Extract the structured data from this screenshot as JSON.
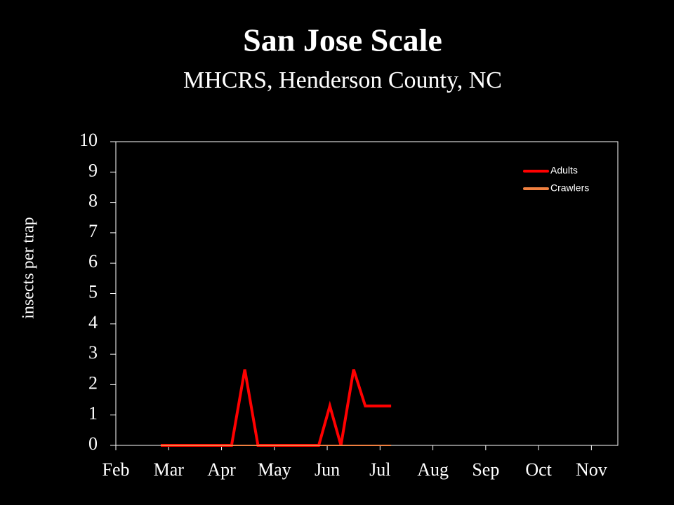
{
  "chart_data": {
    "type": "line",
    "title": "San Jose Scale",
    "subtitle": "MHCRS, Henderson County, NC",
    "y_label": "insects per trap",
    "xlim": [
      0,
      9.5
    ],
    "xticks": [
      {
        "value": 0,
        "label": "Feb"
      },
      {
        "value": 1,
        "label": "Mar"
      },
      {
        "value": 2,
        "label": "Apr"
      },
      {
        "value": 3,
        "label": "May"
      },
      {
        "value": 4,
        "label": "Jun"
      },
      {
        "value": 5,
        "label": "Jul"
      },
      {
        "value": 6,
        "label": "Aug"
      },
      {
        "value": 7,
        "label": "Sep"
      },
      {
        "value": 8,
        "label": "Oct"
      },
      {
        "value": 9,
        "label": "Nov"
      }
    ],
    "ylim": [
      0,
      10
    ],
    "yticks": [
      0,
      1,
      2,
      3,
      4,
      5,
      6,
      7,
      8,
      9,
      10
    ],
    "legend": "upper right",
    "series": [
      {
        "name": "Adults",
        "color": "#ff0000",
        "x": [
          0.85,
          2.19,
          2.44,
          2.69,
          3.84,
          4.05,
          4.26,
          4.5,
          4.72,
          5.21
        ],
        "values": [
          0,
          0,
          2.5,
          0,
          0,
          1.3,
          0,
          2.5,
          1.3,
          1.3
        ]
      },
      {
        "name": "Crawlers",
        "color": "#f08040",
        "x": [
          0.85,
          5.21
        ],
        "values": [
          0,
          0
        ]
      }
    ]
  }
}
